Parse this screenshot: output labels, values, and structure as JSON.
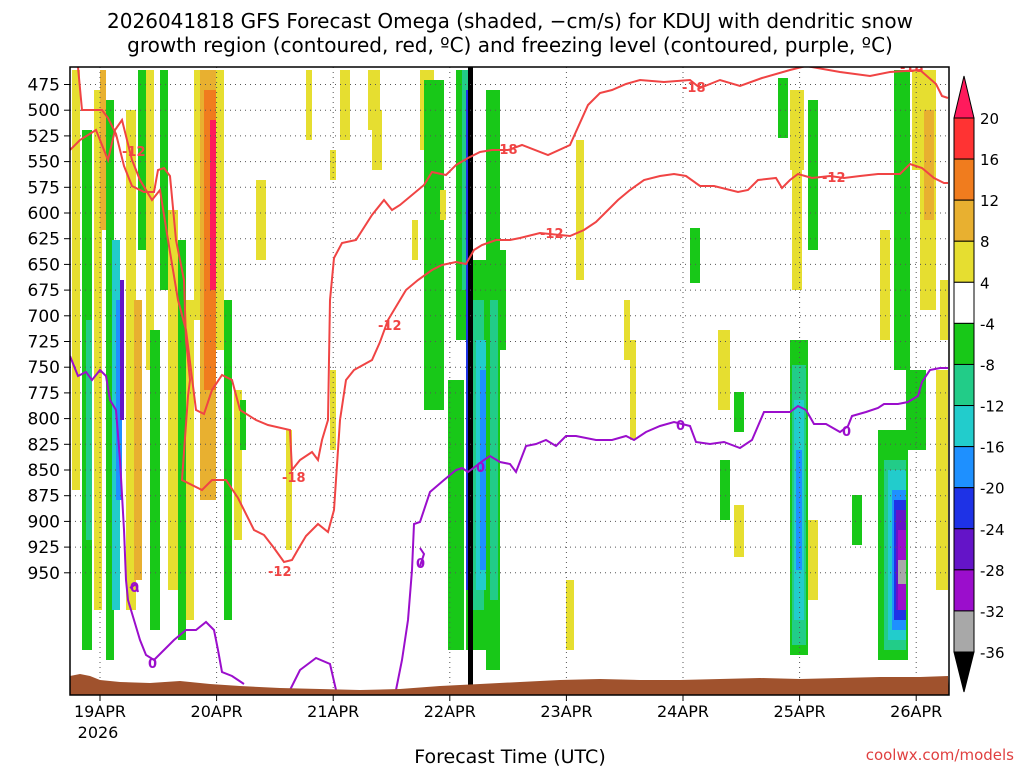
{
  "chart_data": {
    "type": "heatmap",
    "title": {
      "line1": "2026041818 GFS Forecast Omega (shaded, −cm/s) for KDUJ with dendritic snow",
      "line2": "growth region (contoured, red, ºC) and freezing level (contoured, purple, ºC)"
    },
    "xlabel": "Forecast Time (UTC)",
    "credit": "coolwx.com/models",
    "y_levels": [
      "475",
      "500",
      "525",
      "550",
      "575",
      "600",
      "625",
      "650",
      "675",
      "700",
      "725",
      "750",
      "775",
      "800",
      "825",
      "850",
      "875",
      "900",
      "925",
      "950"
    ],
    "x_ticks": [
      "19APR",
      "20APR",
      "21APR",
      "22APR",
      "23APR",
      "24APR",
      "25APR",
      "26APR"
    ],
    "x_year": "2026",
    "colorbar": {
      "labels": [
        "20",
        "16",
        "12",
        "8",
        "4",
        "-4",
        "-8",
        "-12",
        "-16",
        "-20",
        "-24",
        "-28",
        "-32",
        "-36"
      ],
      "colors": [
        "#ff1a5c",
        "#ff3333",
        "#f07c1e",
        "#e8b030",
        "#e6de30",
        "#ffffff",
        "#18c818",
        "#22cc88",
        "#22cccc",
        "#1e90ff",
        "#1e32e6",
        "#6414c8",
        "#9b0ecc",
        "#a8a8a8",
        "#000000"
      ]
    },
    "contours": {
      "dgz_labels": [
        "-12",
        "-12",
        "-18",
        "-12",
        "-18",
        "-18",
        "-12",
        "-12",
        "-18"
      ],
      "freezing_labels": [
        "0",
        "0",
        "0",
        "0",
        "0",
        "0"
      ]
    }
  }
}
